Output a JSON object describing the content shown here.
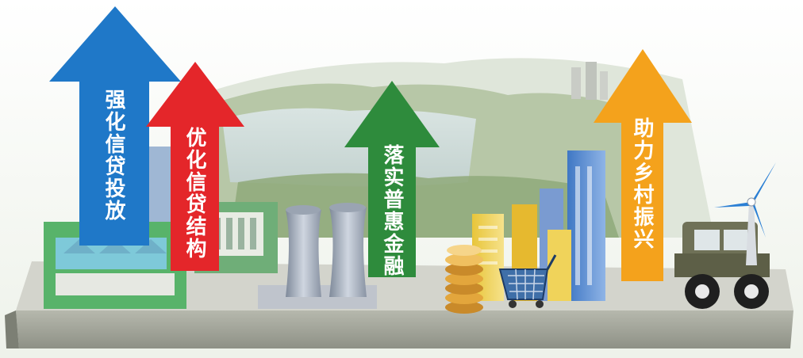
{
  "arrows": [
    {
      "label": "强化信贷投放",
      "color": "#1f78c8"
    },
    {
      "label": "优化信贷结构",
      "color": "#e4262a"
    },
    {
      "label": "落实普惠金融",
      "color": "#2e8b3c"
    },
    {
      "label": "助力乡村振兴",
      "color": "#f4a21c"
    }
  ]
}
